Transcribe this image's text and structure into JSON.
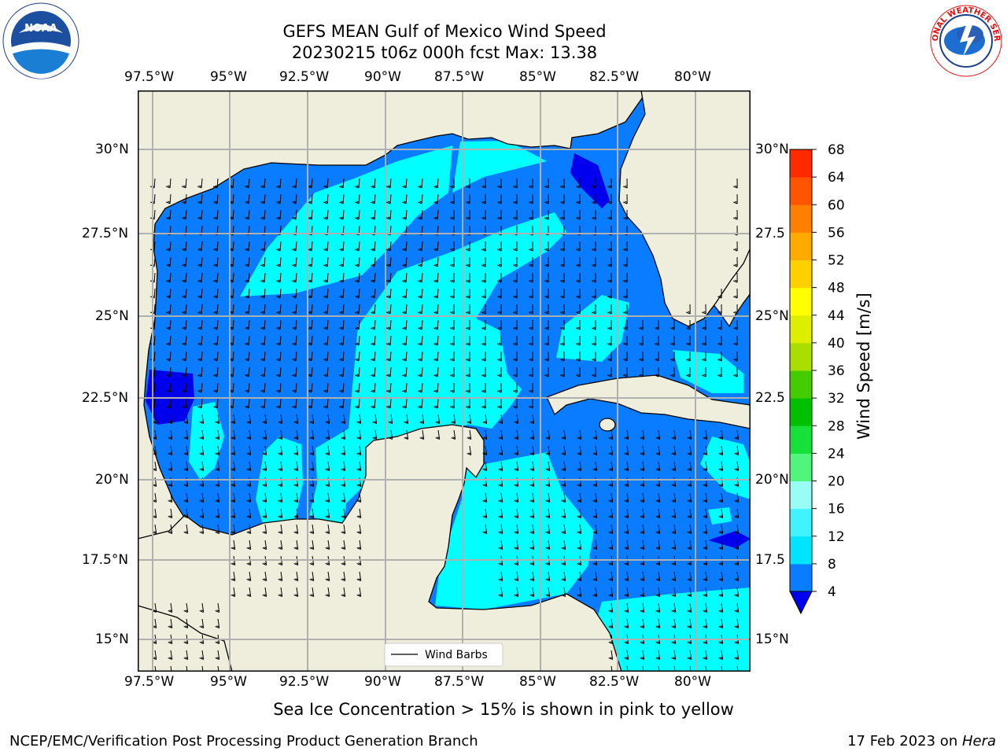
{
  "title_line1": "GEFS MEAN Gulf of Mexico Wind Speed",
  "title_line2": "20230215 t06z 000h fcst   Max: 13.38",
  "lon_labels": [
    "97.5°W",
    "95°W",
    "92.5°W",
    "90°W",
    "87.5°W",
    "85°W",
    "82.5°W",
    "80°W"
  ],
  "lat_labels_left": [
    "30°N",
    "27.5°N",
    "25°N",
    "22.5°N",
    "20°N",
    "17.5°N",
    "15°N"
  ],
  "lat_labels_right": [
    "30°N",
    "27.5",
    "25°N",
    "22.5",
    "20°N",
    "17.5",
    "15°N"
  ],
  "legend_label": "Wind Barbs",
  "colorbar": {
    "label": "Wind Speed [m/s]",
    "ticks": [
      "4",
      "8",
      "12",
      "16",
      "20",
      "24",
      "28",
      "32",
      "36",
      "40",
      "44",
      "48",
      "52",
      "56",
      "60",
      "64",
      "68"
    ],
    "colors": [
      "#0a7cff",
      "#00e5ff",
      "#3ff3ff",
      "#99fdf6",
      "#52f57b",
      "#17e03a",
      "#00c000",
      "#44cc00",
      "#aadd00",
      "#ddee00",
      "#ffff00",
      "#ffd000",
      "#ffaa00",
      "#ff8000",
      "#ff5500",
      "#ff2a00"
    ],
    "under_color": "#0000ee"
  },
  "logos": {
    "left": "NOAA",
    "right": "NATIONAL WEATHER SERVICE"
  },
  "note": "Sea Ice Concentration > 15% is shown in pink to yellow",
  "footer_left": "NCEP/EMC/Verification Post Processing Product Generation Branch",
  "footer_right_prefix": "17 Feb 2023 on ",
  "footer_right_host": "Hera"
}
